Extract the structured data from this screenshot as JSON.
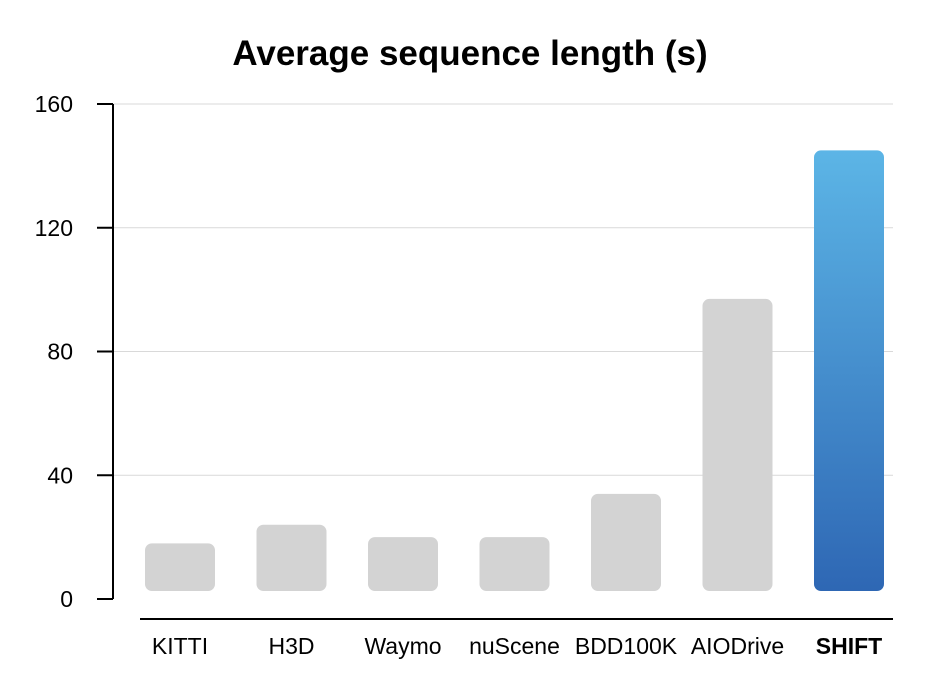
{
  "chart_data": {
    "type": "bar",
    "title": "Average sequence length (s)",
    "xlabel": "",
    "ylabel": "",
    "categories": [
      "KITTI",
      "H3D",
      "Waymo",
      "nuScene",
      "BDD100K",
      "AIODrive",
      "SHIFT"
    ],
    "values": [
      18,
      24,
      20,
      20,
      34,
      97,
      145
    ],
    "highlight": "SHIFT",
    "ylim": [
      0,
      160
    ],
    "yticks": [
      0,
      40,
      80,
      120,
      160
    ],
    "grid": true,
    "colors": {
      "bar": "#d3d3d3",
      "highlight_top": "#5cb5e6",
      "highlight_bottom": "#2e67b4",
      "grid": "#d9d9d9",
      "axis": "#000000"
    }
  }
}
